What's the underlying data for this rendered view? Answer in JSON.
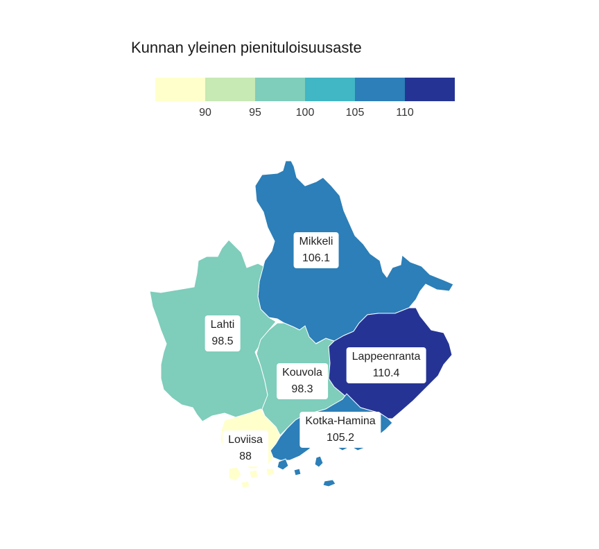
{
  "title": "Kunnan yleinen pienituloisuusaste",
  "legend": {
    "colors": [
      "#ffffcc",
      "#c7e9b4",
      "#7fcdbb",
      "#41b6c4",
      "#2c7fb8",
      "#253494"
    ],
    "ticks": [
      "90",
      "95",
      "100",
      "105",
      "110"
    ]
  },
  "regions": [
    {
      "name": "Mikkeli",
      "value": "106.1",
      "color": "#2c7fb8"
    },
    {
      "name": "Lahti",
      "value": "98.5",
      "color": "#7fcdbb"
    },
    {
      "name": "Kouvola",
      "value": "98.3",
      "color": "#7fcdbb"
    },
    {
      "name": "Lappeenranta",
      "value": "110.4",
      "color": "#253494"
    },
    {
      "name": "Kotka-Hamina",
      "value": "105.2",
      "color": "#2c7fb8"
    },
    {
      "name": "Loviisa",
      "value": "88",
      "color": "#ffffcc"
    }
  ]
}
